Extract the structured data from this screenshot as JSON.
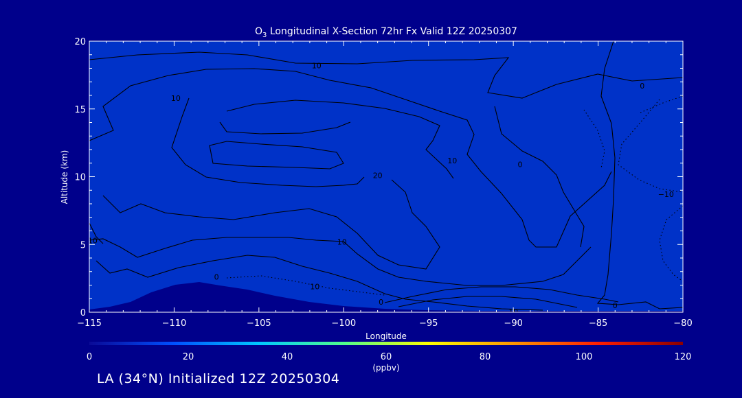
{
  "chart_data": {
    "type": "contour",
    "title": "O3 Longitudinal X-Section 72hr  Fx Valid 12Z 20250307",
    "title_main": "O",
    "title_sub": "3",
    "title_rest": " Longitudinal X-Section 72hr  Fx Valid 12Z 20250307",
    "xlabel": "Longitude",
    "ylabel": "Altitude (km)",
    "xlim": [
      -115,
      -80
    ],
    "ylim": [
      0,
      20
    ],
    "x_ticks": [
      "−115",
      "−110",
      "−105",
      "−100",
      "−95",
      "−90",
      "−85",
      "−80"
    ],
    "x_tick_values": [
      -115,
      -110,
      -105,
      -100,
      -95,
      -90,
      -85,
      -80
    ],
    "y_ticks": [
      "0",
      "5",
      "10",
      "15",
      "20"
    ],
    "y_tick_values": [
      0,
      5,
      10,
      15,
      20
    ],
    "colorbar": {
      "range": [
        0,
        120
      ],
      "ticks": [
        "0",
        "20",
        "40",
        "60",
        "80",
        "100",
        "120"
      ],
      "tick_values": [
        0,
        20,
        40,
        60,
        80,
        100,
        120
      ],
      "unit": "(ppbv)",
      "colors": [
        "#0a0a96",
        "#0050ff",
        "#00c8ff",
        "#50ff8c",
        "#ffff00",
        "#ff9600",
        "#ff1e00",
        "#8b0000"
      ]
    },
    "fill_layers": [
      {
        "value": 115,
        "color": "#8b0000"
      },
      {
        "value": 105,
        "color": "#d20000"
      },
      {
        "value": 95,
        "color": "#ff3200"
      },
      {
        "value": 85,
        "color": "#ff8c00"
      },
      {
        "value": 75,
        "color": "#ffd700"
      },
      {
        "value": 65,
        "color": "#c8ff32"
      },
      {
        "value": 55,
        "color": "#50ffaa"
      },
      {
        "value": 45,
        "color": "#00e6ff"
      },
      {
        "value": 35,
        "color": "#0096ff"
      },
      {
        "value": 25,
        "color": "#0032c8"
      }
    ],
    "contour_labels": [
      {
        "text": "10",
        "lon": -101.6,
        "alt": 18.2
      },
      {
        "text": "10",
        "lon": -100.1,
        "alt": 5.2
      },
      {
        "text": "10",
        "lon": -101.7,
        "alt": 1.9
      },
      {
        "text": "10",
        "lon": -93.6,
        "alt": 11.2
      },
      {
        "text": "10",
        "lon": -90.0,
        "alt": 0.05
      },
      {
        "text": "0",
        "lon": -89.6,
        "alt": 10.9
      },
      {
        "text": "0",
        "lon": -107.5,
        "alt": 2.6
      },
      {
        "text": "0",
        "lon": -97.8,
        "alt": 0.75
      },
      {
        "text": "0",
        "lon": -84.0,
        "alt": 0.5
      },
      {
        "text": "−10",
        "lon": -81.0,
        "alt": 8.7
      },
      {
        "text": "0",
        "lon": -82.4,
        "alt": 16.7
      },
      {
        "text": "20",
        "lon": -98.0,
        "alt": 10.1
      },
      {
        "text": "10",
        "lon": -114.8,
        "alt": 5.3
      },
      {
        "text": "10",
        "lon": -109.9,
        "alt": 15.8
      }
    ]
  },
  "footer": {
    "caption": "LA (34°N) Initialized 12Z 20250304"
  }
}
